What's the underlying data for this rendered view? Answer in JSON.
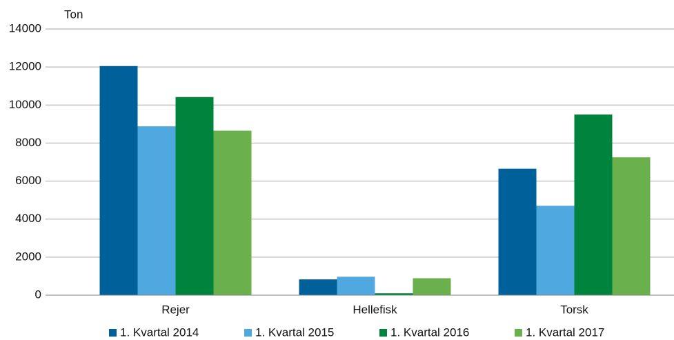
{
  "chart_data": {
    "type": "bar",
    "y_axis_label": "Ton",
    "categories": [
      "Rejer",
      "Hellefisk",
      "Torsk"
    ],
    "series": [
      {
        "name": "1. Kvartal 2014",
        "color": "#00609a",
        "values": [
          12050,
          830,
          6650
        ]
      },
      {
        "name": "1. Kvartal 2015",
        "color": "#4fa8e0",
        "values": [
          8880,
          970,
          4700
        ]
      },
      {
        "name": "1. Kvartal 2016",
        "color": "#00843d",
        "values": [
          10420,
          100,
          9500
        ]
      },
      {
        "name": "1. Kvartal 2017",
        "color": "#6ab04c",
        "values": [
          8650,
          890,
          7250
        ]
      }
    ],
    "ylim": [
      0,
      14000
    ],
    "yticks": [
      0,
      2000,
      4000,
      6000,
      8000,
      10000,
      12000,
      14000
    ],
    "grid": true,
    "legend": "bottom"
  }
}
